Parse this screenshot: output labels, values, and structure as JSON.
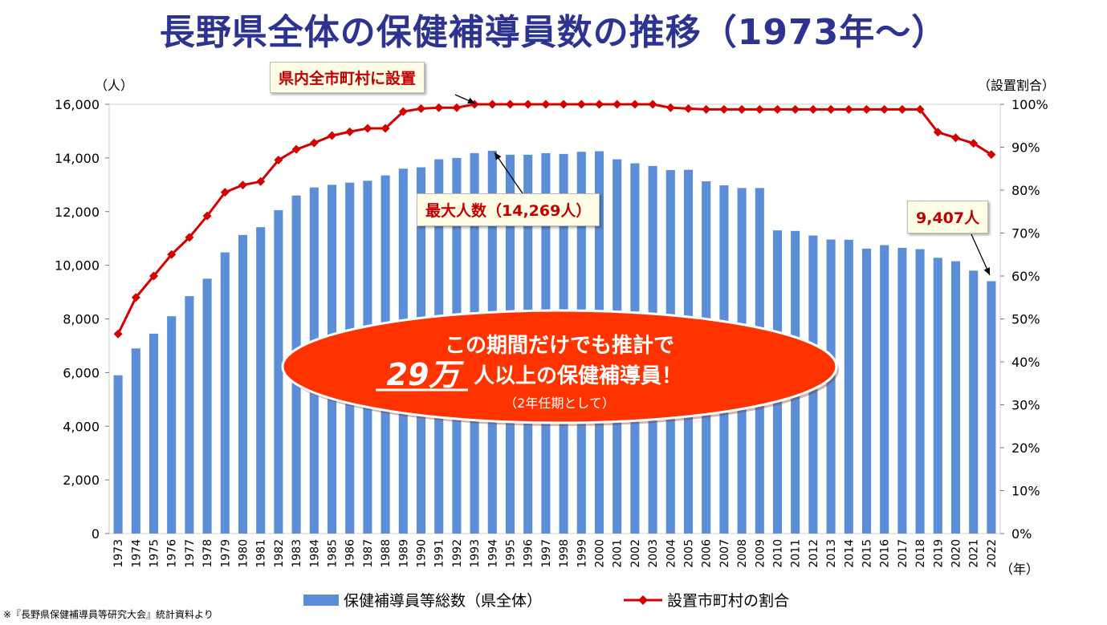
{
  "title": "長野県全体の保健補導員数の推移（1973年～）",
  "left_axis_unit": "（人）",
  "right_axis_unit": "（設置割合）",
  "x_axis_unit": "（年）",
  "callouts": {
    "all_municipalities": "県内全市町村に設置",
    "max_people": "最大人数（14,269人）",
    "latest": "9,407人"
  },
  "ellipse": {
    "line1": "この期間だけでも推計で",
    "big_number": "29万",
    "line2_rest": "人以上の保健補導員！",
    "note": "（2年任期として）"
  },
  "legend": {
    "bar_label": "保健補導員等総数（県全体）",
    "line_label": "設置市町村の割合"
  },
  "source": "※『長野県保健補導員等研究大会』統計資料より",
  "colors": {
    "bar": "#5b8ed6",
    "line": "#d40000",
    "title": "#2d3391",
    "ellipse": "#ff3300"
  },
  "chart_data": {
    "type": "bar+line",
    "categories": [
      "1973",
      "1974",
      "1975",
      "1976",
      "1977",
      "1978",
      "1979",
      "1980",
      "1981",
      "1982",
      "1983",
      "1984",
      "1985",
      "1986",
      "1987",
      "1988",
      "1989",
      "1990",
      "1991",
      "1992",
      "1993",
      "1994",
      "1995",
      "1996",
      "1997",
      "1998",
      "1999",
      "2000",
      "2001",
      "2002",
      "2003",
      "2004",
      "2005",
      "2006",
      "2007",
      "2008",
      "2009",
      "2010",
      "2011",
      "2012",
      "2013",
      "2014",
      "2015",
      "2016",
      "2017",
      "2018",
      "2019",
      "2020",
      "2021",
      "2022"
    ],
    "series": [
      {
        "name": "保健補導員等総数（県全体）",
        "type": "bar",
        "axis": "left",
        "values": [
          5900,
          6900,
          7450,
          8100,
          8850,
          9500,
          10480,
          11130,
          11420,
          12050,
          12600,
          12900,
          13000,
          13080,
          13150,
          13350,
          13600,
          13650,
          13950,
          14000,
          14180,
          14269,
          14120,
          14120,
          14180,
          14150,
          14230,
          14250,
          13950,
          13800,
          13700,
          13550,
          13560,
          13130,
          12980,
          12880,
          12880,
          11300,
          11280,
          11110,
          10960,
          10950,
          10620,
          10750,
          10650,
          10600,
          10280,
          10150,
          9800,
          9407
        ]
      },
      {
        "name": "設置市町村の割合",
        "type": "line",
        "axis": "right",
        "values": [
          46.5,
          55,
          60,
          65,
          69,
          74,
          79.5,
          81.2,
          82,
          87,
          89.5,
          91,
          92.7,
          93.6,
          94.4,
          94.4,
          98.3,
          99,
          99.2,
          99.2,
          100,
          100,
          100,
          100,
          100,
          100,
          100,
          100,
          100,
          100,
          100,
          99.2,
          99,
          98.8,
          98.8,
          98.8,
          98.8,
          98.8,
          98.8,
          98.8,
          98.8,
          98.8,
          98.8,
          98.8,
          98.8,
          98.8,
          93.5,
          92.2,
          90.9,
          88.3
        ]
      }
    ],
    "y_left": {
      "min": 0,
      "max": 16000,
      "ticks": [
        "0",
        "2,000",
        "4,000",
        "6,000",
        "8,000",
        "10,000",
        "12,000",
        "14,000",
        "16,000"
      ]
    },
    "y_right": {
      "min": 0,
      "max": 100,
      "ticks": [
        "0%",
        "10%",
        "20%",
        "30%",
        "40%",
        "50%",
        "60%",
        "70%",
        "80%",
        "90%",
        "100%"
      ]
    },
    "grid": false,
    "legend_position": "bottom"
  }
}
